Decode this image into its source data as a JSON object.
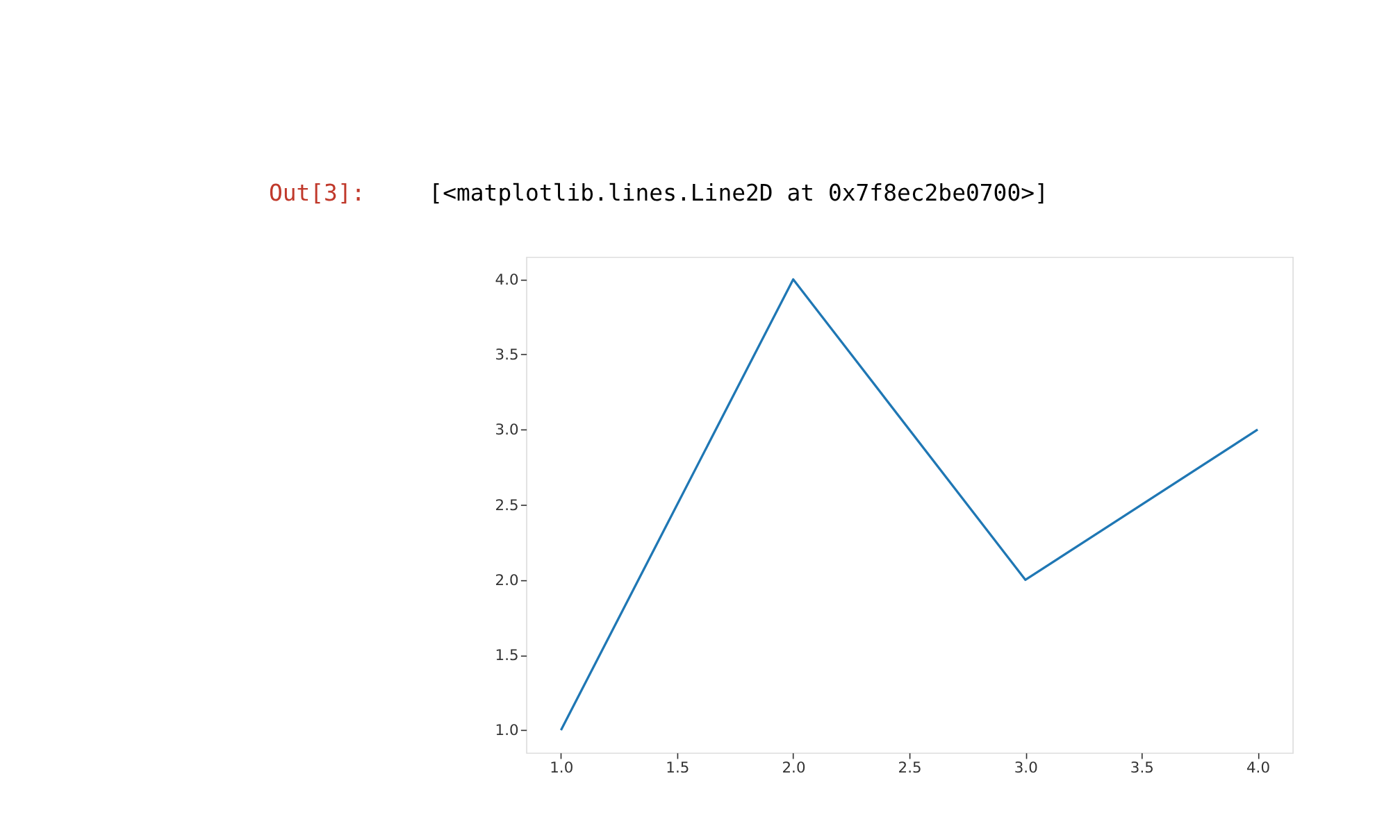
{
  "chart_data": {
    "type": "line",
    "annotations": [
      "Out[3]:",
      "[<matplotlib.lines.Line2D at 0x7f8ec2be0700>]"
    ],
    "x": [
      1,
      2,
      3,
      4
    ],
    "series": [
      {
        "color": "#1f77b4",
        "values": [
          1,
          4,
          2,
          3
        ]
      }
    ],
    "xlim": [
      0.85,
      4.15
    ],
    "ylim": [
      0.85,
      4.15
    ],
    "xticks": [
      {
        "value": 1,
        "label": "1.0"
      },
      {
        "value": 1.5,
        "label": "1.5"
      },
      {
        "value": 2,
        "label": "2.0"
      },
      {
        "value": 2.5,
        "label": "2.5"
      },
      {
        "value": 3,
        "label": "3.0"
      },
      {
        "value": 3.5,
        "label": "3.5"
      },
      {
        "value": 4,
        "label": "4.0"
      }
    ],
    "yticks": [
      {
        "value": 1,
        "label": "1.0"
      },
      {
        "value": 1.5,
        "label": "1.5"
      },
      {
        "value": 2,
        "label": "2.0"
      },
      {
        "value": 2.5,
        "label": "2.5"
      },
      {
        "value": 3,
        "label": "3.0"
      },
      {
        "value": 3.5,
        "label": "3.5"
      },
      {
        "value": 4,
        "label": "4.0"
      }
    ],
    "grid": false,
    "marker": "none",
    "line_style": "solid"
  }
}
